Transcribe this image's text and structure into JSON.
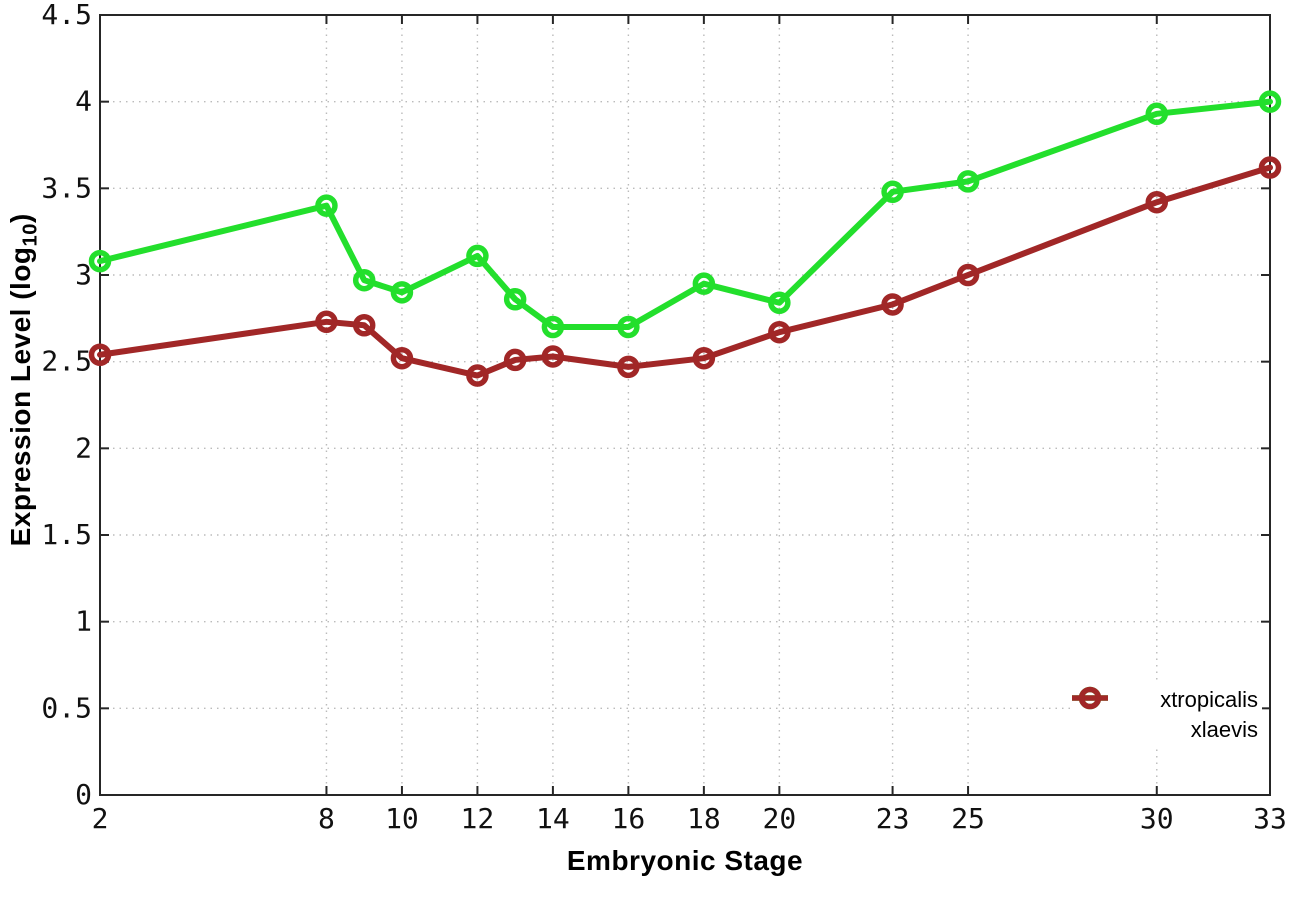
{
  "chart_data": {
    "type": "line",
    "xlabel": "Embryonic Stage",
    "ylabel": "Expression Level (log10)",
    "ylabel_prefix": "Expression Level (log",
    "ylabel_sub": "10",
    "ylabel_suffix": ")",
    "x": [
      2,
      8,
      9,
      10,
      12,
      13,
      14,
      16,
      18,
      20,
      23,
      25,
      30,
      33
    ],
    "x_ticks": [
      2,
      8,
      10,
      12,
      14,
      16,
      18,
      20,
      23,
      25,
      30,
      33
    ],
    "y_ticks": [
      0,
      0.5,
      1,
      1.5,
      2,
      2.5,
      3,
      3.5,
      4,
      4.5
    ],
    "xlim": [
      2,
      33
    ],
    "ylim": [
      0,
      4.5
    ],
    "grid": true,
    "legend_position": "bottom-right",
    "series": [
      {
        "name": "xtropicalis",
        "color": "#23df2c",
        "values": [
          3.08,
          3.4,
          2.97,
          2.9,
          3.11,
          2.86,
          2.7,
          2.7,
          2.95,
          2.84,
          3.48,
          3.54,
          3.93,
          4.0
        ]
      },
      {
        "name": "xlaevis",
        "color": "#a12727",
        "values": [
          2.54,
          2.73,
          2.71,
          2.52,
          2.42,
          2.51,
          2.53,
          2.47,
          2.52,
          2.67,
          2.83,
          3.0,
          3.42,
          3.62
        ]
      }
    ],
    "style": {
      "grid_color": "#bbbbbb",
      "axis_color": "#262626",
      "tick_label_color": "#111111",
      "background": "#ffffff"
    }
  }
}
